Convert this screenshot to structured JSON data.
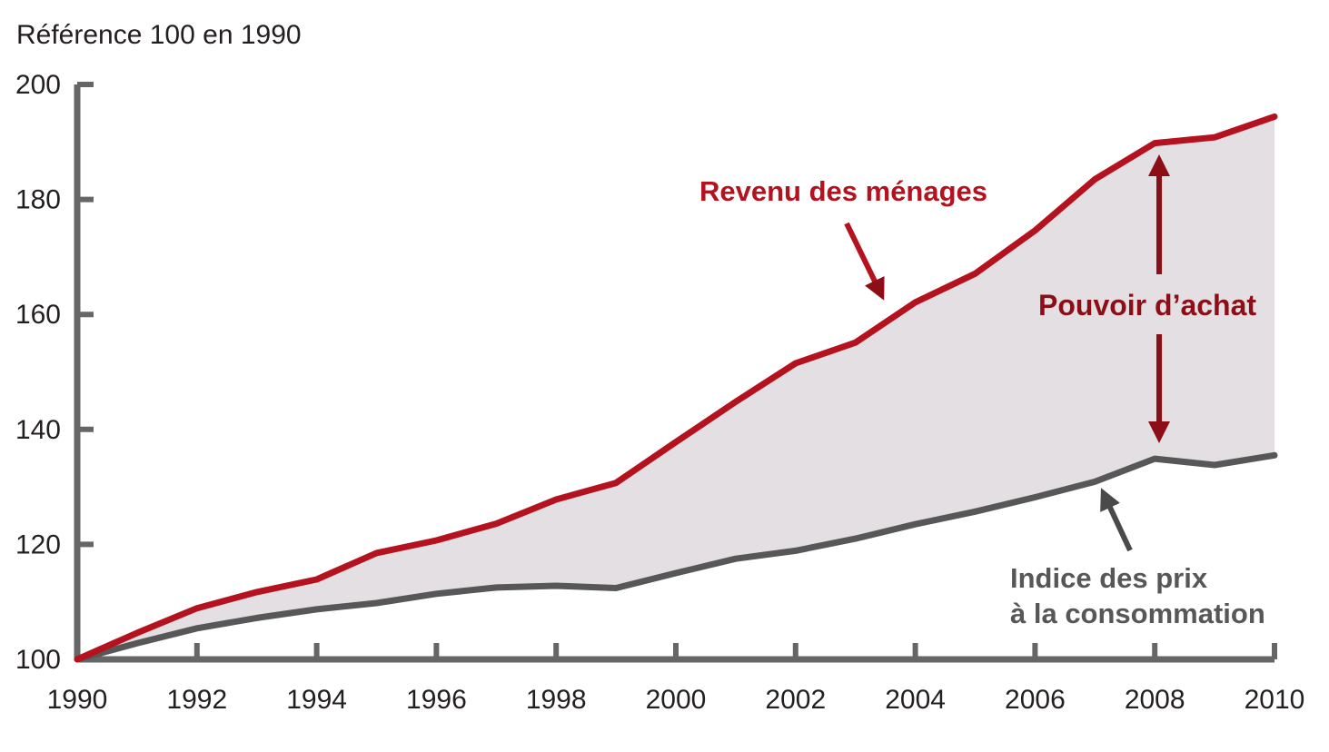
{
  "chart_data": {
    "type": "area",
    "y_unit_label": "Référence 100 en 1990",
    "x": [
      1990,
      1991,
      1992,
      1993,
      1994,
      1995,
      1996,
      1997,
      1998,
      1999,
      2000,
      2001,
      2002,
      2003,
      2004,
      2005,
      2006,
      2007,
      2008,
      2009,
      2010
    ],
    "series": [
      {
        "name": "Revenu des ménages",
        "color": "#b3121e",
        "values": [
          100,
          104.6,
          108.9,
          111.7,
          113.9,
          118.5,
          120.7,
          123.6,
          127.8,
          130.7,
          137.8,
          144.8,
          151.5,
          155.1,
          162.1,
          167.1,
          174.6,
          183.5,
          189.8,
          190.8,
          194.4
        ]
      },
      {
        "name": "Indice des prix à la consommation",
        "color": "#575757",
        "values": [
          100,
          102.8,
          105.4,
          107.2,
          108.7,
          109.8,
          111.4,
          112.5,
          112.8,
          112.4,
          115,
          117.5,
          118.9,
          121,
          123.5,
          125.7,
          128.2,
          130.9,
          134.9,
          133.8,
          135.5
        ]
      }
    ],
    "fill_between_color": "#e3dfe2",
    "x_ticks": [
      "1990",
      "1992",
      "1994",
      "1996",
      "1998",
      "2000",
      "2002",
      "2004",
      "2006",
      "2008",
      "2010"
    ],
    "y_ticks": [
      "100",
      "120",
      "140",
      "160",
      "180",
      "200"
    ],
    "xlim": [
      1990,
      2010
    ],
    "ylim": [
      100,
      200
    ],
    "grid": false,
    "annotations": {
      "revenu": "Revenu des ménages",
      "pouvoir": "Pouvoir d’achat",
      "indice_line1": "Indice des prix",
      "indice_line2": "à la consommation"
    },
    "axis_color": "#666666",
    "pouvoir_color": "#8c0f17"
  }
}
